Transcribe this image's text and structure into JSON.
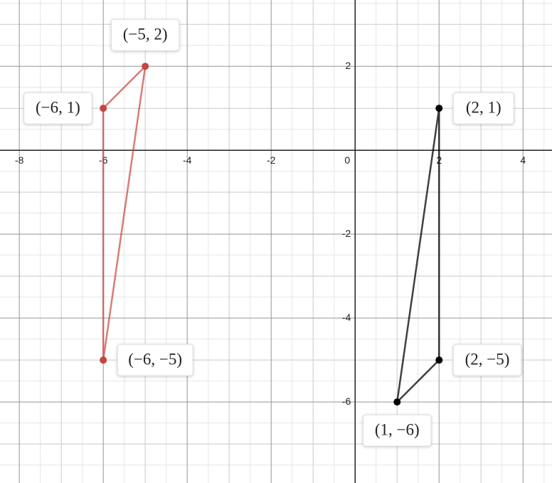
{
  "chart_data": {
    "type": "polygon",
    "xlim": [
      -8.46,
      4.69
    ],
    "ylim": [
      -7.93,
      3.58
    ],
    "xticks": [
      -8,
      -6,
      -4,
      -2,
      0,
      2,
      4
    ],
    "yticks": [
      -6,
      -4,
      -2,
      2
    ],
    "grid": true,
    "minor_grid": 0.5,
    "series": [
      {
        "color": "#c74440",
        "x": [
          -6,
          -5,
          -6
        ],
        "values": [
          1,
          2,
          -5
        ],
        "value_labels": [
          "(−6, 1)",
          "(−5, 2)",
          "(−6, −5)"
        ]
      },
      {
        "color": "#000000",
        "x": [
          2,
          2,
          1
        ],
        "values": [
          1,
          -5,
          -6
        ],
        "value_labels": [
          "(2, 1)",
          "(2, −5)",
          "(1, −6)"
        ]
      }
    ]
  }
}
